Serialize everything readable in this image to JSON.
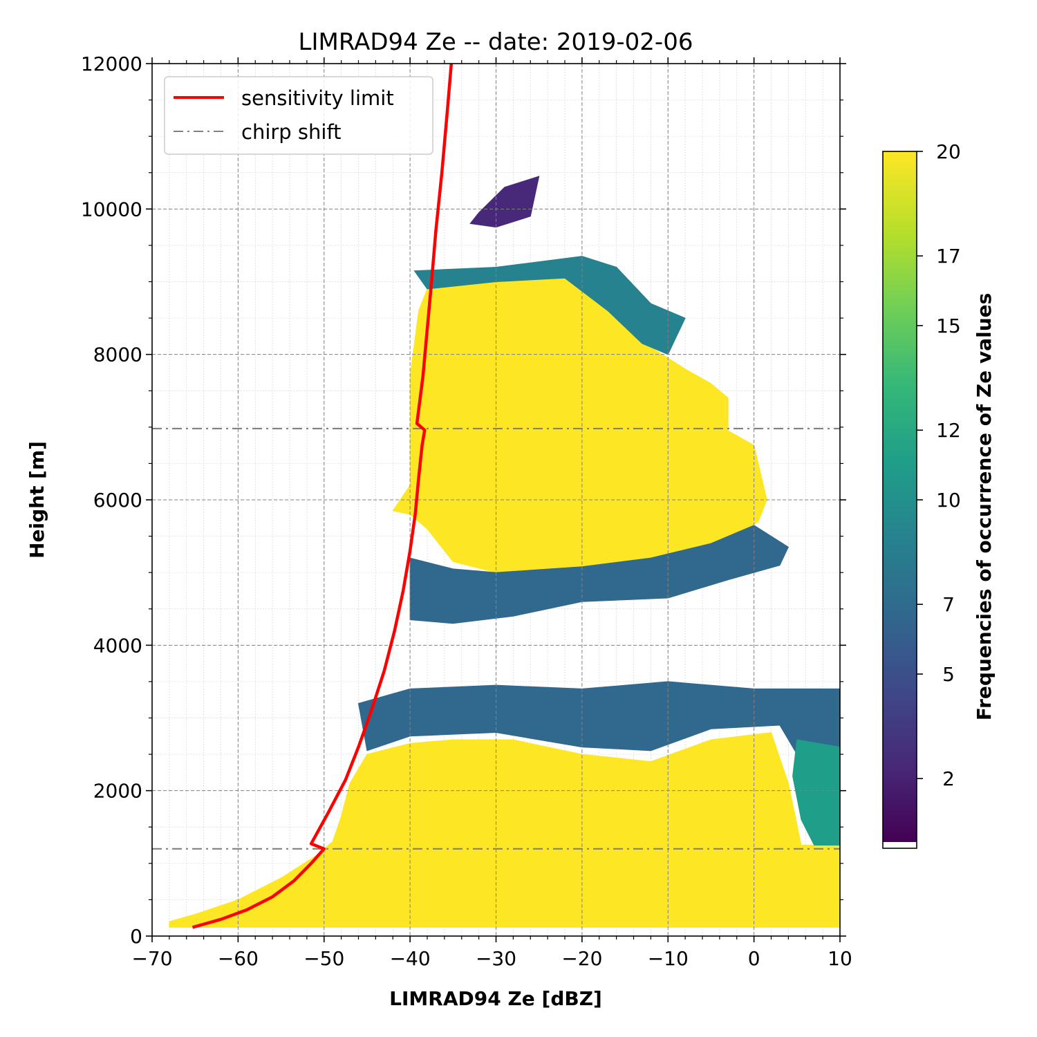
{
  "chart_data": {
    "type": "heatmap",
    "title": "LIMRAD94 Ze -- date: 2019-02-06",
    "xlabel": "LIMRAD94 Ze [dBZ]",
    "ylabel": "Height [m]",
    "xlim": [
      -70,
      10
    ],
    "ylim": [
      0,
      12000
    ],
    "x_ticks": [
      -70,
      -60,
      -50,
      -40,
      -30,
      -20,
      -10,
      0,
      10
    ],
    "x_tick_labels": [
      "−70",
      "−60",
      "−50",
      "−40",
      "−30",
      "−20",
      "−10",
      "0",
      "10"
    ],
    "y_ticks": [
      0,
      2000,
      4000,
      6000,
      8000,
      10000,
      12000
    ],
    "y_tick_labels": [
      "0",
      "2000",
      "4000",
      "6000",
      "8000",
      "10000",
      "12000"
    ],
    "grid": true,
    "legend_position": "top-left",
    "legend": [
      {
        "label": "sensitivity limit",
        "color": "#ff0000",
        "style": "solid"
      },
      {
        "label": "chirp shift",
        "color": "#808080",
        "style": "dashdot"
      }
    ],
    "colorbar": {
      "label": "Frequencies of occurrence of Ze values",
      "range": [
        0,
        20
      ],
      "ticks": [
        2,
        5,
        7,
        10,
        12,
        15,
        17,
        20
      ],
      "tick_labels": [
        "2",
        "5",
        "7",
        "10",
        "12",
        "15",
        "17",
        "20"
      ],
      "colormap": "viridis",
      "colors": [
        "#440154",
        "#482878",
        "#3e4989",
        "#31688e",
        "#26828e",
        "#1f9e89",
        "#35b779",
        "#6ece58",
        "#b5de2b",
        "#fde725"
      ]
    },
    "chirp_shift_heights": [
      1200,
      6980
    ],
    "sensitivity_limit": {
      "name": "sensitivity limit",
      "points": [
        [
          -65.3,
          120
        ],
        [
          -62,
          230
        ],
        [
          -59,
          360
        ],
        [
          -56,
          540
        ],
        [
          -53.5,
          760
        ],
        [
          -51.5,
          1000
        ],
        [
          -50,
          1200
        ],
        [
          -51.5,
          1270
        ],
        [
          -49.5,
          1700
        ],
        [
          -47.5,
          2150
        ],
        [
          -46,
          2600
        ],
        [
          -44.5,
          3100
        ],
        [
          -43,
          3650
        ],
        [
          -41.8,
          4200
        ],
        [
          -40.8,
          4750
        ],
        [
          -40,
          5300
        ],
        [
          -39.4,
          5800
        ],
        [
          -39,
          6300
        ],
        [
          -38.6,
          6750
        ],
        [
          -38.3,
          6960
        ],
        [
          -39.2,
          7050
        ],
        [
          -38.5,
          7700
        ],
        [
          -38,
          8350
        ],
        [
          -37.5,
          9000
        ],
        [
          -37,
          9700
        ],
        [
          -36.3,
          10500
        ],
        [
          -35.7,
          11300
        ],
        [
          -35.2,
          12000
        ]
      ]
    },
    "frequency_regions": [
      {
        "frequency": 20,
        "polygon": [
          [
            -68,
            120
          ],
          [
            -50,
            120
          ],
          [
            10,
            120
          ],
          [
            10,
            1250
          ],
          [
            5.5,
            1250
          ],
          [
            4,
            2100
          ],
          [
            2,
            2800
          ],
          [
            -5,
            2700
          ],
          [
            -12,
            2400
          ],
          [
            -20,
            2500
          ],
          [
            -28,
            2700
          ],
          [
            -35,
            2700
          ],
          [
            -40,
            2650
          ],
          [
            -45,
            2500
          ],
          [
            -47,
            2100
          ],
          [
            -48,
            1650
          ],
          [
            -49,
            1300
          ],
          [
            -51,
            1100
          ],
          [
            -55,
            800
          ],
          [
            -60,
            500
          ],
          [
            -65,
            300
          ],
          [
            -68,
            200
          ]
        ]
      },
      {
        "frequency": 20,
        "polygon": [
          [
            -42,
            5850
          ],
          [
            -40,
            6200
          ],
          [
            -40,
            7700
          ],
          [
            -39,
            8600
          ],
          [
            -38,
            8900
          ],
          [
            -30,
            9000
          ],
          [
            -22,
            9050
          ],
          [
            -19,
            9000
          ],
          [
            -16,
            8500
          ],
          [
            -12,
            8100
          ],
          [
            -8,
            7800
          ],
          [
            -5,
            7600
          ],
          [
            -3,
            7400
          ],
          [
            -3,
            6950
          ],
          [
            0,
            6750
          ],
          [
            1.5,
            6000
          ],
          [
            0.5,
            5700
          ],
          [
            -5,
            5300
          ],
          [
            -12,
            5150
          ],
          [
            -20,
            5050
          ],
          [
            -30,
            5000
          ],
          [
            -35,
            5150
          ],
          [
            -38,
            5600
          ],
          [
            -40,
            5800
          ]
        ]
      },
      {
        "frequency": 6,
        "polygon": [
          [
            -40,
            4350
          ],
          [
            -35,
            4300
          ],
          [
            -28,
            4400
          ],
          [
            -20,
            4600
          ],
          [
            -10,
            4650
          ],
          [
            -3,
            4900
          ],
          [
            3,
            5100
          ],
          [
            4,
            5350
          ],
          [
            0,
            5650
          ],
          [
            -5,
            5400
          ],
          [
            -12,
            5200
          ],
          [
            -20,
            5080
          ],
          [
            -30,
            5000
          ],
          [
            -35,
            5050
          ],
          [
            -40,
            5200
          ]
        ]
      },
      {
        "frequency": 6,
        "polygon": [
          [
            -46,
            3200
          ],
          [
            -40,
            3400
          ],
          [
            -30,
            3450
          ],
          [
            -20,
            3400
          ],
          [
            -10,
            3500
          ],
          [
            0,
            3400
          ],
          [
            10,
            3400
          ],
          [
            10,
            2600
          ],
          [
            5,
            2500
          ],
          [
            3,
            2900
          ],
          [
            -5,
            2850
          ],
          [
            -12,
            2550
          ],
          [
            -20,
            2600
          ],
          [
            -30,
            2800
          ],
          [
            -40,
            2750
          ],
          [
            -45,
            2550
          ]
        ]
      },
      {
        "frequency": 8,
        "polygon": [
          [
            -39.5,
            9150
          ],
          [
            -30,
            9200
          ],
          [
            -20,
            9350
          ],
          [
            -16,
            9200
          ],
          [
            -12,
            8700
          ],
          [
            -8,
            8500
          ],
          [
            -10,
            8000
          ],
          [
            -13,
            8150
          ],
          [
            -17,
            8600
          ],
          [
            -22,
            9050
          ],
          [
            -30,
            9000
          ],
          [
            -38,
            8900
          ]
        ]
      },
      {
        "frequency": 10,
        "polygon": [
          [
            5,
            2700
          ],
          [
            10,
            2600
          ],
          [
            10,
            1250
          ],
          [
            7,
            1250
          ],
          [
            5.5,
            1600
          ],
          [
            4.5,
            2200
          ]
        ]
      },
      {
        "frequency": 2,
        "polygon": [
          [
            -32,
            9950
          ],
          [
            -29,
            10300
          ],
          [
            -25,
            10450
          ],
          [
            -26,
            9900
          ],
          [
            -30,
            9750
          ],
          [
            -33,
            9800
          ]
        ]
      }
    ]
  }
}
